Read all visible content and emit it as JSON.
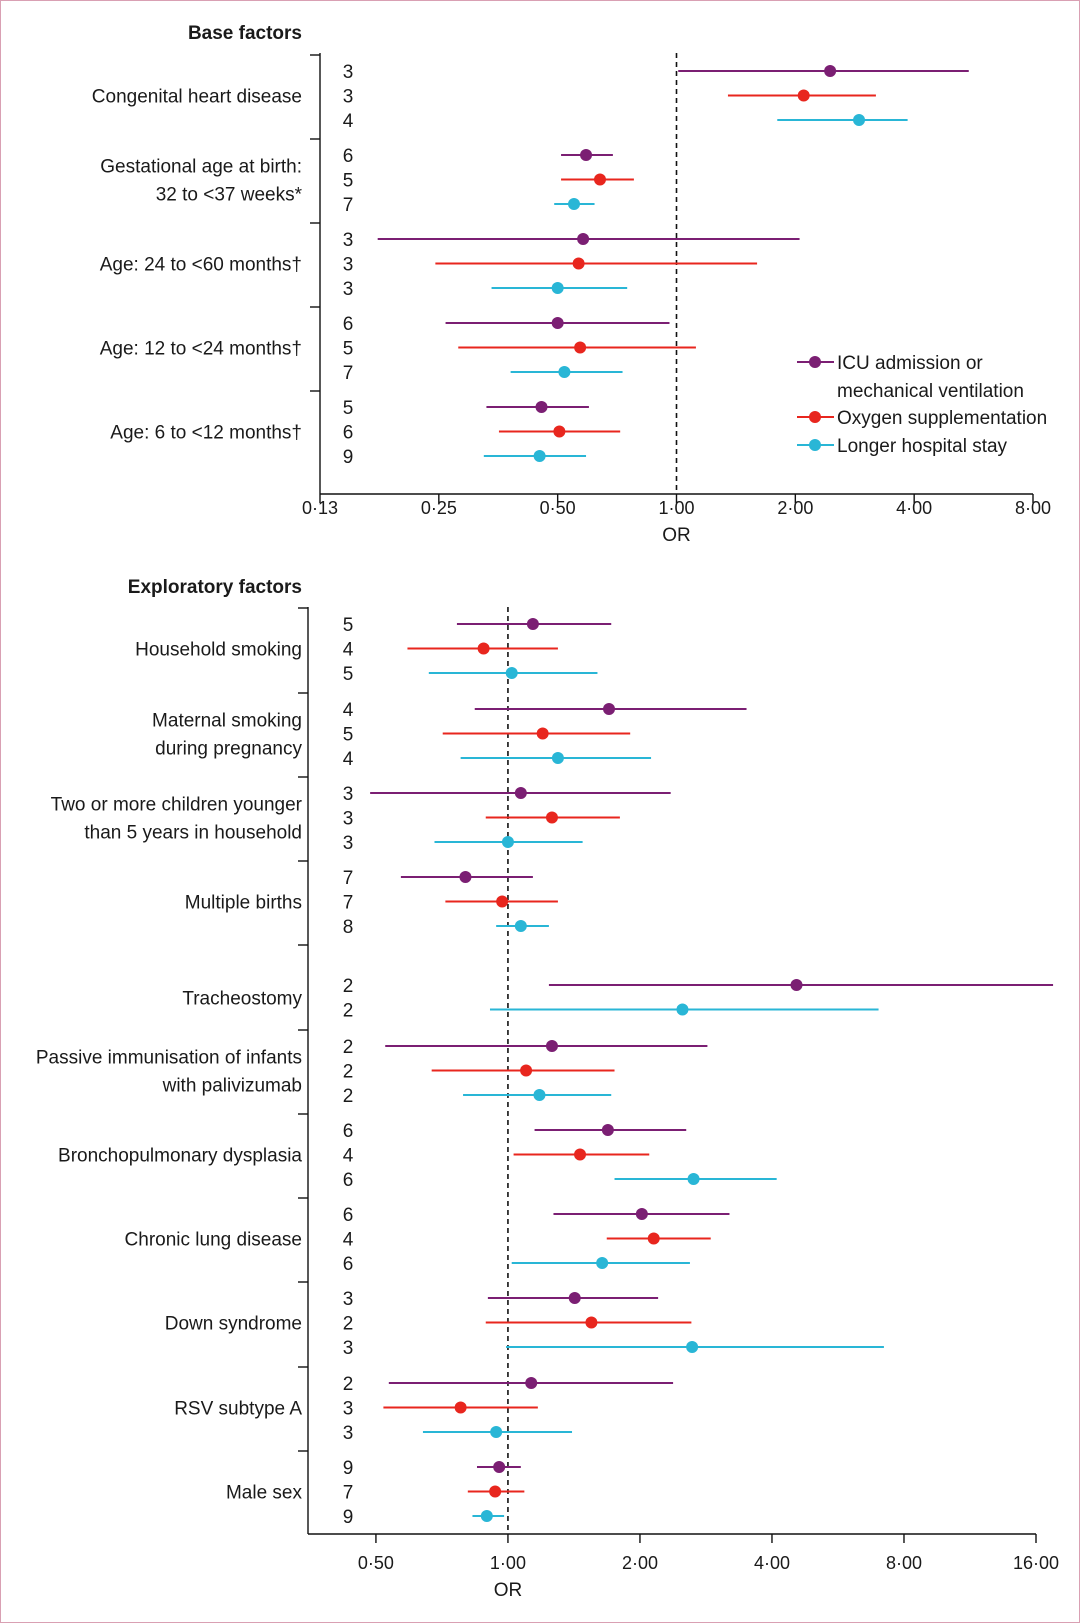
{
  "legend": [
    {
      "label": [
        "ICU admission or",
        "mechanical ventilation"
      ],
      "color": "#7b1f73"
    },
    {
      "label": [
        "Oxygen supplementation"
      ],
      "color": "#e8261e"
    },
    {
      "label": [
        "Longer hospital stay"
      ],
      "color": "#29b6d6"
    }
  ],
  "chart_data": [
    {
      "type": "forest",
      "title": "Base factors",
      "xlabel": "OR",
      "x_scale": "log2",
      "xlim": [
        0.125,
        8
      ],
      "ticks": [
        0.125,
        0.25,
        0.5,
        1,
        2,
        4,
        8
      ],
      "tick_labels": [
        "0·13",
        "0·25",
        "0·50",
        "1·00",
        "2·00",
        "4·00",
        "8·00"
      ],
      "reference_line": 1,
      "series_names": [
        "ICU admission or mechanical ventilation",
        "Oxygen supplementation",
        "Longer hospital stay"
      ],
      "groups": [
        {
          "label": [
            "Congenital heart disease"
          ],
          "rows": [
            {
              "series": 0,
              "n": "3",
              "or": 2.45,
              "lo": 1.01,
              "hi": 5.5
            },
            {
              "series": 1,
              "n": "3",
              "or": 2.1,
              "lo": 1.35,
              "hi": 3.2
            },
            {
              "series": 2,
              "n": "4",
              "or": 2.9,
              "lo": 1.8,
              "hi": 3.85
            }
          ]
        },
        {
          "label": [
            "Gestational age at birth:",
            "32 to <37 weeks*"
          ],
          "rows": [
            {
              "series": 0,
              "n": "6",
              "or": 0.59,
              "lo": 0.51,
              "hi": 0.69
            },
            {
              "series": 1,
              "n": "5",
              "or": 0.64,
              "lo": 0.51,
              "hi": 0.78
            },
            {
              "series": 2,
              "n": "7",
              "or": 0.55,
              "lo": 0.49,
              "hi": 0.62
            }
          ]
        },
        {
          "label": [
            "Age: 24 to <60 months†"
          ],
          "rows": [
            {
              "series": 0,
              "n": "3",
              "or": 0.58,
              "lo": 0.175,
              "hi": 2.05
            },
            {
              "series": 1,
              "n": "3",
              "or": 0.565,
              "lo": 0.245,
              "hi": 1.6
            },
            {
              "series": 2,
              "n": "3",
              "or": 0.5,
              "lo": 0.34,
              "hi": 0.75
            }
          ]
        },
        {
          "label": [
            "Age: 12 to <24 months†"
          ],
          "rows": [
            {
              "series": 0,
              "n": "6",
              "or": 0.5,
              "lo": 0.26,
              "hi": 0.96
            },
            {
              "series": 1,
              "n": "5",
              "or": 0.57,
              "lo": 0.28,
              "hi": 1.12
            },
            {
              "series": 2,
              "n": "7",
              "or": 0.52,
              "lo": 0.38,
              "hi": 0.73
            }
          ]
        },
        {
          "label": [
            "Age: 6 to <12 months†"
          ],
          "rows": [
            {
              "series": 0,
              "n": "5",
              "or": 0.455,
              "lo": 0.33,
              "hi": 0.6
            },
            {
              "series": 1,
              "n": "6",
              "or": 0.505,
              "lo": 0.355,
              "hi": 0.72
            },
            {
              "series": 2,
              "n": "9",
              "or": 0.45,
              "lo": 0.325,
              "hi": 0.59
            }
          ]
        }
      ]
    },
    {
      "type": "forest",
      "title": "Exploratory factors",
      "xlabel": "OR",
      "x_scale": "log2",
      "xlim": [
        0.35,
        16
      ],
      "ticks": [
        0.5,
        1,
        2,
        4,
        8,
        16
      ],
      "tick_labels": [
        "0·50",
        "1·00",
        "2·00",
        "4·00",
        "8·00",
        "16·00"
      ],
      "reference_line": 1,
      "series_names": [
        "ICU admission or mechanical ventilation",
        "Oxygen supplementation",
        "Longer hospital stay"
      ],
      "groups": [
        {
          "label": [
            "Household smoking"
          ],
          "rows": [
            {
              "series": 0,
              "n": "5",
              "or": 1.14,
              "lo": 0.765,
              "hi": 1.72
            },
            {
              "series": 1,
              "n": "4",
              "or": 0.88,
              "lo": 0.59,
              "hi": 1.3
            },
            {
              "series": 2,
              "n": "5",
              "or": 1.02,
              "lo": 0.66,
              "hi": 1.6
            }
          ]
        },
        {
          "label": [
            "Maternal smoking",
            "during pregnancy"
          ],
          "rows": [
            {
              "series": 0,
              "n": "4",
              "or": 1.7,
              "lo": 0.84,
              "hi": 3.5
            },
            {
              "series": 1,
              "n": "5",
              "or": 1.2,
              "lo": 0.71,
              "hi": 1.9
            },
            {
              "series": 2,
              "n": "4",
              "or": 1.3,
              "lo": 0.78,
              "hi": 2.12
            }
          ]
        },
        {
          "label": [
            "Two or more children younger",
            "than 5 years in household"
          ],
          "rows": [
            {
              "series": 0,
              "n": "3",
              "or": 1.07,
              "lo": 0.485,
              "hi": 2.35
            },
            {
              "series": 1,
              "n": "3",
              "or": 1.26,
              "lo": 0.89,
              "hi": 1.8
            },
            {
              "series": 2,
              "n": "3",
              "or": 1.0,
              "lo": 0.68,
              "hi": 1.48
            }
          ]
        },
        {
          "label": [
            "Multiple births"
          ],
          "rows": [
            {
              "series": 0,
              "n": "7",
              "or": 0.8,
              "lo": 0.57,
              "hi": 1.14
            },
            {
              "series": 1,
              "n": "7",
              "or": 0.97,
              "lo": 0.72,
              "hi": 1.3
            },
            {
              "series": 2,
              "n": "8",
              "or": 1.07,
              "lo": 0.94,
              "hi": 1.24
            }
          ]
        },
        {
          "label": [
            "Tracheostomy"
          ],
          "rows": [
            {
              "series": 0,
              "n": "2",
              "or": 4.55,
              "lo": 1.24,
              "hi": 17.5
            },
            {
              "series": 2,
              "n": "2",
              "or": 2.5,
              "lo": 0.91,
              "hi": 7.0
            }
          ]
        },
        {
          "label": [
            "Passive immunisation of infants",
            "with palivizumab"
          ],
          "rows": [
            {
              "series": 0,
              "n": "2",
              "or": 1.26,
              "lo": 0.525,
              "hi": 2.85
            },
            {
              "series": 1,
              "n": "2",
              "or": 1.1,
              "lo": 0.67,
              "hi": 1.75
            },
            {
              "series": 2,
              "n": "2",
              "or": 1.18,
              "lo": 0.79,
              "hi": 1.72
            }
          ]
        },
        {
          "label": [
            "Bronchopulmonary dysplasia"
          ],
          "rows": [
            {
              "series": 0,
              "n": "6",
              "or": 1.69,
              "lo": 1.15,
              "hi": 2.55
            },
            {
              "series": 1,
              "n": "4",
              "or": 1.46,
              "lo": 1.03,
              "hi": 2.1
            },
            {
              "series": 2,
              "n": "6",
              "or": 2.65,
              "lo": 1.75,
              "hi": 4.1
            }
          ]
        },
        {
          "label": [
            "Chronic lung disease"
          ],
          "rows": [
            {
              "series": 0,
              "n": "6",
              "or": 2.02,
              "lo": 1.27,
              "hi": 3.2
            },
            {
              "series": 1,
              "n": "4",
              "or": 2.15,
              "lo": 1.68,
              "hi": 2.9
            },
            {
              "series": 2,
              "n": "6",
              "or": 1.64,
              "lo": 1.02,
              "hi": 2.6
            }
          ]
        },
        {
          "label": [
            "Down syndrome"
          ],
          "rows": [
            {
              "series": 0,
              "n": "3",
              "or": 1.42,
              "lo": 0.9,
              "hi": 2.2
            },
            {
              "series": 1,
              "n": "2",
              "or": 1.55,
              "lo": 0.89,
              "hi": 2.62
            },
            {
              "series": 2,
              "n": "3",
              "or": 2.63,
              "lo": 0.99,
              "hi": 7.2
            }
          ]
        },
        {
          "label": [
            "RSV subtype A"
          ],
          "rows": [
            {
              "series": 0,
              "n": "2",
              "or": 1.13,
              "lo": 0.535,
              "hi": 2.38
            },
            {
              "series": 1,
              "n": "3",
              "or": 0.78,
              "lo": 0.52,
              "hi": 1.17
            },
            {
              "series": 2,
              "n": "3",
              "or": 0.94,
              "lo": 0.64,
              "hi": 1.4
            }
          ]
        },
        {
          "label": [
            "Male sex"
          ],
          "rows": [
            {
              "series": 0,
              "n": "9",
              "or": 0.955,
              "lo": 0.85,
              "hi": 1.07
            },
            {
              "series": 1,
              "n": "7",
              "or": 0.935,
              "lo": 0.81,
              "hi": 1.09
            },
            {
              "series": 2,
              "n": "9",
              "or": 0.895,
              "lo": 0.83,
              "hi": 0.98
            }
          ]
        }
      ]
    }
  ]
}
